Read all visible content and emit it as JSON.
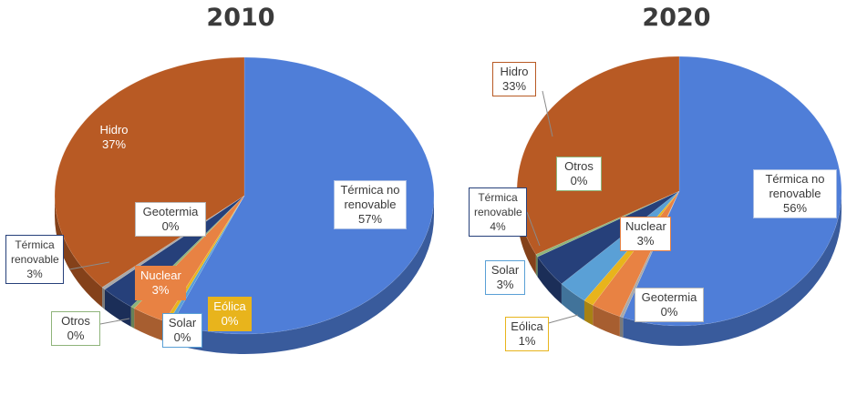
{
  "chart_data": [
    {
      "type": "pie",
      "title": "2010",
      "slices": [
        {
          "name": "Térmica no renovable",
          "value": 57,
          "label": "57%",
          "color": "#4f7ed8"
        },
        {
          "name": "Solar",
          "value": 0,
          "label": "0%",
          "color": "#5aa0d6"
        },
        {
          "name": "Eólica",
          "value": 0,
          "label": "0%",
          "color": "#e8b41c"
        },
        {
          "name": "Nuclear",
          "value": 3,
          "label": "3%",
          "color": "#e88243"
        },
        {
          "name": "Otros",
          "value": 0,
          "label": "0%",
          "color": "#8fb47a"
        },
        {
          "name": "Térmica renovable",
          "value": 3,
          "label": "3%",
          "color": "#26407a"
        },
        {
          "name": "Geotermia",
          "value": 0,
          "label": "0%",
          "color": "#a9a9a9"
        },
        {
          "name": "Hidro",
          "value": 37,
          "label": "37%",
          "color": "#b85a24"
        }
      ]
    },
    {
      "type": "pie",
      "title": "2020",
      "slices": [
        {
          "name": "Térmica no renovable",
          "value": 56,
          "label": "56%",
          "color": "#4f7ed8"
        },
        {
          "name": "Geotermia",
          "value": 0,
          "label": "0%",
          "color": "#a9a9a9"
        },
        {
          "name": "Nuclear",
          "value": 3,
          "label": "3%",
          "color": "#e88243"
        },
        {
          "name": "Eólica",
          "value": 1,
          "label": "1%",
          "color": "#e8b41c"
        },
        {
          "name": "Solar",
          "value": 3,
          "label": "3%",
          "color": "#5aa0d6"
        },
        {
          "name": "Térmica renovable",
          "value": 4,
          "label": "4%",
          "color": "#26407a"
        },
        {
          "name": "Otros",
          "value": 0,
          "label": "0%",
          "color": "#8fb47a"
        },
        {
          "name": "Hidro",
          "value": 33,
          "label": "33%",
          "color": "#b85a24"
        }
      ]
    }
  ],
  "labels_left": {
    "termica_no_renovable": {
      "line1": "Térmica no",
      "line2": "renovable",
      "line3": "57%"
    },
    "hidro": {
      "line1": "Hidro",
      "line2": "37%"
    },
    "geotermia": {
      "line1": "Geotermia",
      "line2": "0%"
    },
    "termica_renovable": {
      "line1": "Térmica",
      "line2": "renovable",
      "line3": "3%"
    },
    "nuclear": {
      "line1": "Nuclear",
      "line2": "3%"
    },
    "eolica": {
      "line1": "Eólica",
      "line2": "0%"
    },
    "otros": {
      "line1": "Otros",
      "line2": "0%"
    },
    "solar": {
      "line1": "Solar",
      "line2": "0%"
    }
  },
  "labels_right": {
    "hidro": {
      "line1": "Hidro",
      "line2": "33%"
    },
    "otros": {
      "line1": "Otros",
      "line2": "0%"
    },
    "termica_renovable": {
      "line1": "Térmica",
      "line2": "renovable",
      "line3": "4%"
    },
    "nuclear": {
      "line1": "Nuclear",
      "line2": "3%"
    },
    "termica_no_renovable": {
      "line1": "Térmica no",
      "line2": "renovable",
      "line3": "56%"
    },
    "solar": {
      "line1": "Solar",
      "line2": "3%"
    },
    "geotermia": {
      "line1": "Geotermia",
      "line2": "0%"
    },
    "eolica": {
      "line1": "Eólica",
      "line2": "1%"
    }
  }
}
